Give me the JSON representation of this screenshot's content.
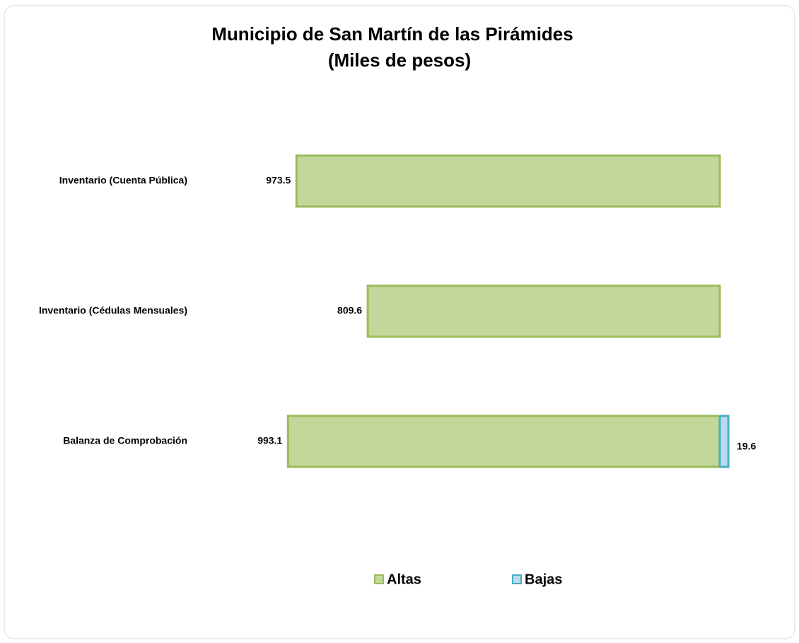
{
  "chart_data": {
    "type": "bar",
    "orientation": "horizontal",
    "title": "Municipio de San Martín de las Pirámides",
    "subtitle": "(Miles de pesos)",
    "categories": [
      "Inventario (Cuenta Pública)",
      "Inventario (Cédulas Mensuales)",
      "Balanza de Comprobación"
    ],
    "series": [
      {
        "name": "Altas",
        "color": "#c4d79b",
        "values": [
          973.5,
          809.6,
          993.1
        ]
      },
      {
        "name": "Bajas",
        "color": "#b7dee8",
        "values": [
          null,
          null,
          19.6
        ]
      }
    ],
    "legend": "bottom"
  }
}
